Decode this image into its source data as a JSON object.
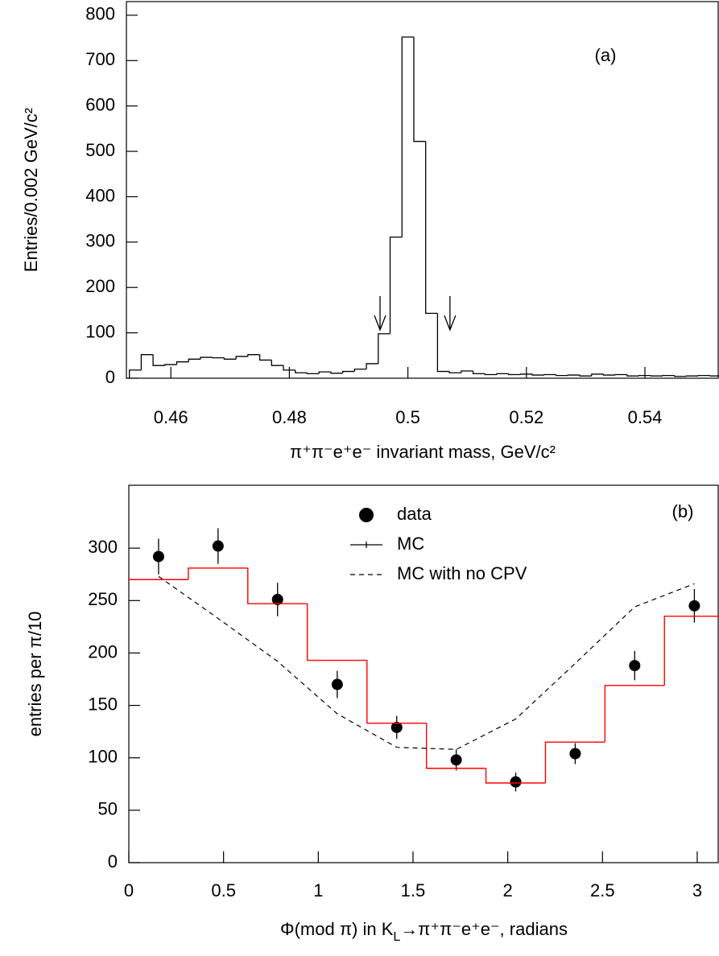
{
  "chart_data": [
    {
      "type": "histogram",
      "label": "(a)",
      "x_label": "π⁺π⁻e⁺e⁻ invariant mass, GeV/c²",
      "y_label": "Entries/0.002 GeV/c²",
      "bins": [
        0.453,
        0.455,
        0.457,
        0.459,
        0.461,
        0.463,
        0.465,
        0.467,
        0.469,
        0.471,
        0.473,
        0.475,
        0.477,
        0.479,
        0.481,
        0.483,
        0.485,
        0.487,
        0.489,
        0.491,
        0.493,
        0.495,
        0.497,
        0.499,
        0.501,
        0.503,
        0.505,
        0.507,
        0.509,
        0.511,
        0.513,
        0.515,
        0.517,
        0.519,
        0.521,
        0.523,
        0.525,
        0.527,
        0.529,
        0.531,
        0.533,
        0.535,
        0.537,
        0.539,
        0.541,
        0.543,
        0.545,
        0.547,
        0.549,
        0.551,
        0.553
      ],
      "values": [
        18,
        52,
        28,
        30,
        36,
        42,
        46,
        45,
        42,
        48,
        52,
        40,
        28,
        18,
        12,
        10,
        14,
        11,
        15,
        20,
        32,
        98,
        311,
        752,
        522,
        143,
        15,
        12,
        16,
        10,
        8,
        10,
        8,
        9,
        7,
        8,
        6,
        7,
        5,
        9,
        7,
        8,
        5,
        6,
        5,
        6,
        4,
        5,
        6,
        5
      ],
      "color": "#000000",
      "arrows": [
        0.4953,
        0.5071
      ],
      "xlim": [
        0.4525,
        0.5525
      ],
      "ylim": [
        0,
        830
      ],
      "xticks": [
        0.46,
        0.48,
        0.5,
        0.52,
        0.54
      ],
      "yticks": [
        0,
        100,
        200,
        300,
        400,
        500,
        600,
        700,
        800
      ]
    },
    {
      "type": "scatter",
      "label": "(b)",
      "x_label_parts": [
        "Φ(mod π) in K",
        "L",
        "→π⁺π⁻e⁺e⁻,  radians"
      ],
      "y_label": "entries per  π/10",
      "series": [
        {
          "name": "data",
          "color": "#000000",
          "style": "points",
          "x": [
            0.157,
            0.471,
            0.785,
            1.1,
            1.414,
            1.728,
            2.042,
            2.356,
            2.67,
            2.985
          ],
          "values": [
            292,
            302,
            251,
            170,
            129,
            98,
            77,
            104,
            188,
            245
          ],
          "errors": [
            17,
            17,
            16,
            13,
            11,
            10,
            9,
            10,
            14,
            16
          ]
        },
        {
          "name": "MC",
          "color": "#ff0000",
          "style": "step",
          "bins": [
            0,
            0.314,
            0.628,
            0.942,
            1.257,
            1.571,
            1.885,
            2.199,
            2.513,
            2.827,
            3.142
          ],
          "values": [
            270,
            281,
            247,
            193,
            133,
            90,
            76,
            115,
            169,
            235
          ]
        },
        {
          "name": "MC with no CPV",
          "color": "#000000",
          "style": "dashed",
          "x": [
            0.157,
            0.471,
            0.785,
            1.1,
            1.414,
            1.728,
            2.042,
            2.356,
            2.67,
            2.985
          ],
          "values": [
            273,
            233,
            192,
            142,
            110,
            108,
            137,
            190,
            244,
            266
          ]
        }
      ],
      "xlim": [
        0,
        3.115
      ],
      "ylim": [
        0,
        360
      ],
      "xticks": [
        0,
        0.5,
        1,
        1.5,
        2,
        2.5,
        3
      ],
      "yticks": [
        0,
        50,
        100,
        150,
        200,
        250,
        300
      ]
    }
  ]
}
